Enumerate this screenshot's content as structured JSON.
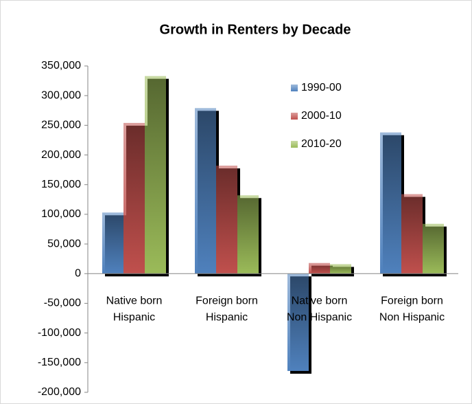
{
  "chart_data": {
    "type": "bar",
    "title": "Growth in Renters by Decade",
    "categories": [
      "Native born\nHispanic",
      "Foreign born\nHispanic",
      "Native born\nNon Hispanic",
      "Foreign born\nNon Hispanic"
    ],
    "series": [
      {
        "name": "1990-00",
        "color": "#4f81bd",
        "values": [
          103000,
          279000,
          -164000,
          238000
        ]
      },
      {
        "name": "2000-10",
        "color": "#c0504d",
        "values": [
          254000,
          182000,
          18000,
          134000
        ]
      },
      {
        "name": "2010-20",
        "color": "#9bbb59",
        "values": [
          333000,
          132000,
          16000,
          84000
        ]
      }
    ],
    "ylim": [
      -200000,
      350000
    ],
    "yticks": [
      {
        "value": -200000,
        "label": "-200,000"
      },
      {
        "value": -150000,
        "label": "-150,000"
      },
      {
        "value": -100000,
        "label": "-100,000"
      },
      {
        "value": -50000,
        "label": "-50,000"
      },
      0,
      {
        "value": 50000,
        "label": "50,000"
      },
      {
        "value": 100000,
        "label": "100,000"
      },
      {
        "value": 150000,
        "label": "150,000"
      },
      {
        "value": 200000,
        "label": "200,000"
      },
      {
        "value": 250000,
        "label": "250,000"
      },
      {
        "value": 300000,
        "label": "300,000"
      },
      {
        "value": 350000,
        "label": "350,000"
      }
    ],
    "legend": "upper center"
  }
}
